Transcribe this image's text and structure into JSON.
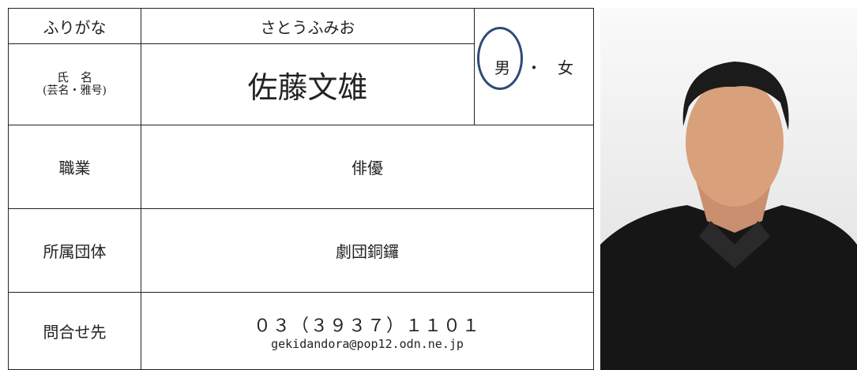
{
  "form": {
    "furigana": {
      "label": "ふりがな",
      "value": "さとうふみお"
    },
    "name": {
      "label_line1": "氏　名",
      "label_line2": "(芸名・雅号)",
      "value": "佐藤文雄"
    },
    "gender": {
      "options": [
        "男",
        "女"
      ],
      "separator": "・",
      "selected": 0
    },
    "occupation": {
      "label": "職業",
      "value": "俳優"
    },
    "affiliation": {
      "label": "所属団体",
      "value": "劇団銅鑼"
    },
    "contact": {
      "label": "問合せ先",
      "phone": "０３（３９３７）１１０１",
      "email": "gekidandora@pop12.odn.ne.jp"
    }
  }
}
